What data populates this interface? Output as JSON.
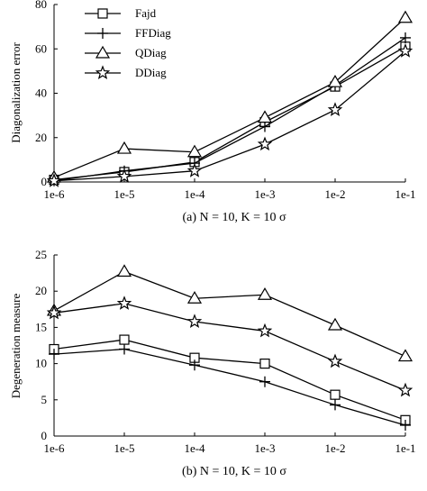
{
  "chart_data": [
    {
      "type": "line",
      "categories": [
        "1e-6",
        "1e-5",
        "1e-4",
        "1e-3",
        "1e-2",
        "1e-1"
      ],
      "ylabel": "Diagonalization error",
      "xlabel": "",
      "ylim": [
        0,
        80
      ],
      "yticks": [
        "0",
        "20",
        "40",
        "60",
        "80"
      ],
      "caption": "(a) N = 10, K = 10 σ",
      "legend_position": "top-left",
      "series": [
        {
          "name": "Fajd",
          "marker": "square",
          "values": [
            1,
            4.5,
            9,
            27,
            43,
            61
          ]
        },
        {
          "name": "FFDiag",
          "marker": "plus",
          "values": [
            0.5,
            5,
            8.5,
            25,
            43.5,
            65
          ]
        },
        {
          "name": "QDiag",
          "marker": "triangle",
          "values": [
            2,
            15,
            13.5,
            29,
            45,
            74
          ]
        },
        {
          "name": "DDiag",
          "marker": "star",
          "values": [
            0.5,
            2.5,
            5,
            17,
            32.5,
            59
          ]
        }
      ]
    },
    {
      "type": "line",
      "categories": [
        "1e-6",
        "1e-5",
        "1e-4",
        "1e-3",
        "1e-2",
        "1e-1"
      ],
      "ylabel": "Degeneration measure",
      "xlabel": "",
      "ylim": [
        0,
        25
      ],
      "yticks": [
        "0",
        "5",
        "10",
        "15",
        "20",
        "25"
      ],
      "caption": "(b) N = 10, K = 10 σ",
      "series": [
        {
          "name": "Fajd",
          "marker": "square",
          "values": [
            12,
            13.3,
            10.8,
            10,
            5.7,
            2.2
          ]
        },
        {
          "name": "FFDiag",
          "marker": "plus",
          "values": [
            11.3,
            12,
            9.8,
            7.5,
            4.3,
            1.5
          ]
        },
        {
          "name": "QDiag",
          "marker": "triangle",
          "values": [
            17.3,
            22.7,
            19,
            19.5,
            15.3,
            11
          ]
        },
        {
          "name": "DDiag",
          "marker": "star",
          "values": [
            17,
            18.3,
            15.8,
            14.5,
            10.3,
            6.3
          ]
        }
      ]
    }
  ]
}
